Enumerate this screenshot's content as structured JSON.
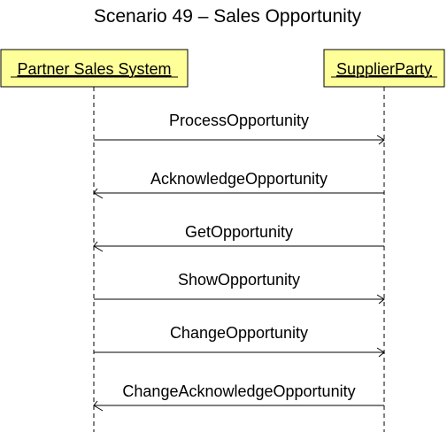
{
  "diagram": {
    "title": "Scenario 49 – Sales Opportunity",
    "participants": [
      {
        "id": "left",
        "label": "Partner Sales System"
      },
      {
        "id": "right",
        "label": "SupplierParty"
      }
    ],
    "messages": [
      {
        "label": "ProcessOpportunity",
        "from": "left",
        "to": "right"
      },
      {
        "label": "AcknowledgeOpportunity",
        "from": "right",
        "to": "left"
      },
      {
        "label": "GetOpportunity",
        "from": "right",
        "to": "left"
      },
      {
        "label": "ShowOpportunity",
        "from": "left",
        "to": "right"
      },
      {
        "label": "ChangeOpportunity",
        "from": "left",
        "to": "right"
      },
      {
        "label": "ChangeAcknowledgeOpportunity",
        "from": "right",
        "to": "left"
      }
    ],
    "colors": {
      "participant_fill": "#ffff99",
      "line": "#000000",
      "text": "#000000"
    }
  }
}
